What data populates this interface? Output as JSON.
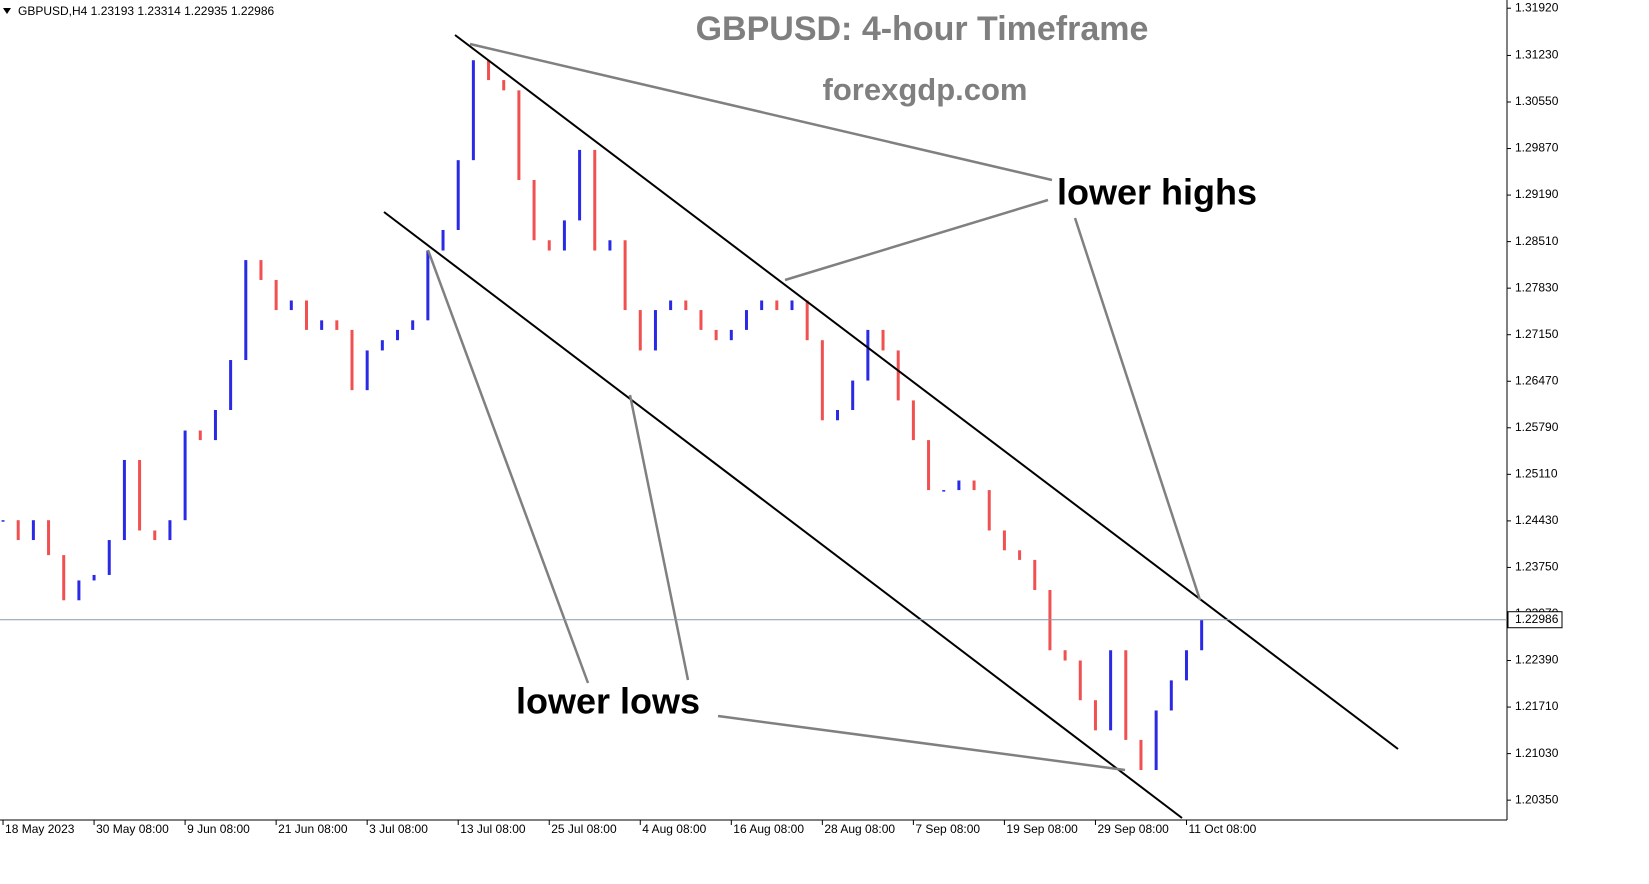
{
  "chart_data": {
    "type": "price-bars",
    "header": "GBPUSD,H4  1.23193 1.23314 1.22935 1.22986",
    "title": "GBPUSD: 4-hour Timeframe",
    "subtitle": "forexgdp.com",
    "annotations": [
      "lower highs",
      "lower lows"
    ],
    "up_color": "#2a2ae6",
    "down_color": "#f05050",
    "x": [
      0,
      8,
      16,
      24,
      32,
      40,
      48,
      56,
      64,
      72,
      80,
      88,
      96,
      104,
      112,
      120,
      128,
      136,
      144,
      152,
      160,
      168,
      176,
      184,
      192,
      200,
      208,
      216,
      224,
      232,
      240,
      248,
      256,
      264,
      272,
      280,
      288,
      296,
      304,
      312,
      320,
      328,
      336,
      344,
      352,
      360,
      368,
      376,
      384,
      392,
      400,
      408,
      416,
      424,
      432,
      440,
      448,
      456,
      464,
      472,
      480,
      488,
      496,
      504,
      512,
      520,
      528,
      536,
      544,
      552,
      560,
      568,
      576,
      584,
      592,
      600,
      608,
      616,
      624,
      632
    ],
    "series": [
      {
        "name": "GBPUSD,H4",
        "values": [
          1.2444,
          1.2415,
          1.2444,
          1.2393,
          1.2327,
          1.2356,
          1.2364,
          1.2415,
          1.2532,
          1.2429,
          1.2415,
          1.2444,
          1.2575,
          1.2561,
          1.2605,
          1.2678,
          1.2824,
          1.2795,
          1.2751,
          1.2765,
          1.2722,
          1.2736,
          1.2722,
          1.2634,
          1.2692,
          1.2707,
          1.2722,
          1.2736,
          1.2838,
          1.2868,
          1.297,
          1.3116,
          1.3087,
          1.3072,
          1.2941,
          1.2853,
          1.2838,
          1.2882,
          1.2985,
          1.2838,
          1.2853,
          1.2751,
          1.2692,
          1.2751,
          1.2765,
          1.2751,
          1.2722,
          1.2707,
          1.2722,
          1.2751,
          1.2765,
          1.2751,
          1.2765,
          1.2707,
          1.259,
          1.2605,
          1.2648,
          1.2722,
          1.2692,
          1.2619,
          1.2561,
          1.2488,
          1.2488,
          1.2502,
          1.2488,
          1.2429,
          1.24,
          1.2386,
          1.2342,
          1.2254,
          1.2239,
          1.2181,
          1.2137,
          1.2254,
          1.2123,
          1.2079,
          1.2166,
          1.221,
          1.2254,
          1.2298
        ]
      }
    ],
    "current_price": {
      "value": 1.22986,
      "label": "1.22986"
    },
    "xlim": [
      -1.6,
      793
    ],
    "xticks": [
      {
        "value": 0,
        "label": "18 May 2023"
      },
      {
        "value": 48,
        "label": "30 May 08:00"
      },
      {
        "value": 96,
        "label": "9 Jun 08:00"
      },
      {
        "value": 144,
        "label": "21 Jun 08:00"
      },
      {
        "value": 192,
        "label": "3 Jul 08:00"
      },
      {
        "value": 240,
        "label": "13 Jul 08:00"
      },
      {
        "value": 288,
        "label": "25 Jul 08:00"
      },
      {
        "value": 336,
        "label": "4 Aug 08:00"
      },
      {
        "value": 384,
        "label": "16 Aug 08:00"
      },
      {
        "value": 432,
        "label": "28 Aug 08:00"
      },
      {
        "value": 480,
        "label": "7 Sep 08:00"
      },
      {
        "value": 528,
        "label": "19 Sep 08:00"
      },
      {
        "value": 576,
        "label": "29 Sep 08:00"
      },
      {
        "value": 624,
        "label": "11 Oct 08:00"
      }
    ],
    "ylim": [
      1.2006,
      1.3204
    ],
    "yticks": [
      {
        "value": 1.3192,
        "label": "1.31920"
      },
      {
        "value": 1.3123,
        "label": "1.31230"
      },
      {
        "value": 1.3055,
        "label": "1.30550"
      },
      {
        "value": 1.2987,
        "label": "1.29870"
      },
      {
        "value": 1.2919,
        "label": "1.29190"
      },
      {
        "value": 1.2851,
        "label": "1.28510"
      },
      {
        "value": 1.2783,
        "label": "1.27830"
      },
      {
        "value": 1.2715,
        "label": "1.27150"
      },
      {
        "value": 1.2647,
        "label": "1.26470"
      },
      {
        "value": 1.2579,
        "label": "1.25790"
      },
      {
        "value": 1.2511,
        "label": "1.25110"
      },
      {
        "value": 1.2443,
        "label": "1.24430"
      },
      {
        "value": 1.2375,
        "label": "1.23750"
      },
      {
        "value": 1.2307,
        "label": "1.23070"
      },
      {
        "value": 1.2239,
        "label": "1.22390"
      },
      {
        "value": 1.2171,
        "label": "1.21710"
      },
      {
        "value": 1.2103,
        "label": "1.21030"
      },
      {
        "value": 1.2035,
        "label": "1.20350"
      }
    ]
  }
}
